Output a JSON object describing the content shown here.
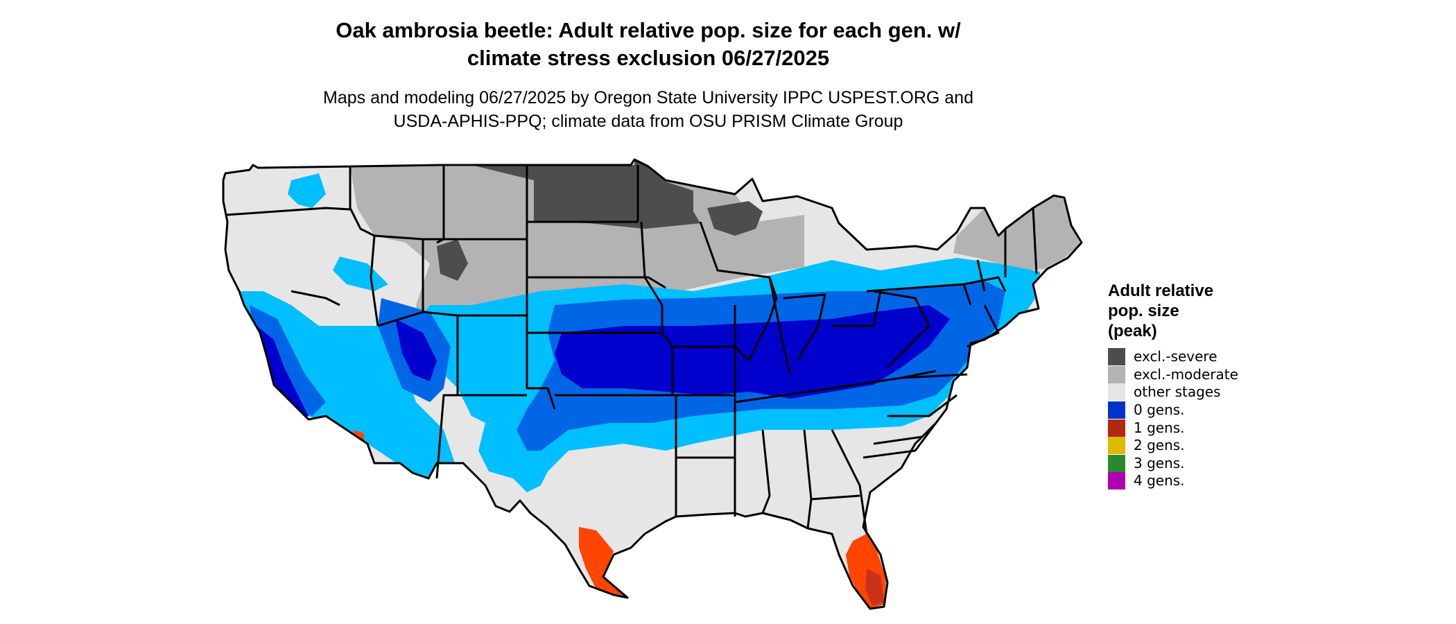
{
  "title_line1": "Oak ambrosia beetle: Adult relative pop. size for each gen. w/",
  "title_line2": "climate stress exclusion 06/27/2025",
  "subtitle_line1": "Maps and modeling 06/27/2025 by Oregon State University IPPC USPEST.ORG and",
  "subtitle_line2": "USDA-APHIS-PPQ; climate data from OSU PRISM Climate Group",
  "legend": {
    "title_line1": "Adult relative",
    "title_line2": "pop. size",
    "title_line3": "(peak)",
    "items": [
      {
        "label": "excl.-severe",
        "color": "#4d4d4d"
      },
      {
        "label": "excl.-moderate",
        "color": "#b3b3b3"
      },
      {
        "label": "other stages",
        "color": "#e6e6e6"
      },
      {
        "label": "0 gens.",
        "color": "#0033cc"
      },
      {
        "label": "1 gens.",
        "color": "#b22a0d"
      },
      {
        "label": "2 gens.",
        "color": "#e0b800"
      },
      {
        "label": "3 gens.",
        "color": "#2a8a2a"
      },
      {
        "label": "4 gens.",
        "color": "#b000b0"
      }
    ]
  },
  "map_colors": {
    "light_blue": "#00bfff",
    "mid_blue": "#0066e6",
    "deep_blue": "#0000cc",
    "orange_red": "#ff4500",
    "border": "#000000"
  }
}
